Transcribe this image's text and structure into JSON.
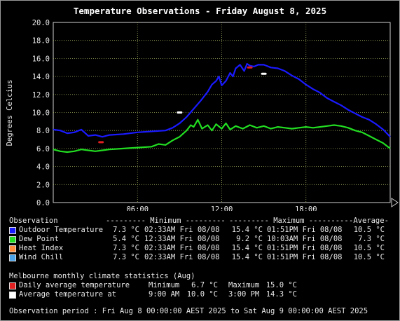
{
  "title": "Temperature Observations - Friday August 8, 2025",
  "chart_data": {
    "type": "line",
    "title": "Temperature Observations - Friday August 8, 2025",
    "ylabel": "Degrees Celcius",
    "xlabel": "",
    "ylim": [
      0,
      20
    ],
    "xlim_hours": [
      0,
      24
    ],
    "y_ticks": [
      "0.0",
      "2.0",
      "4.0",
      "6.0",
      "8.0",
      "10.0",
      "12.0",
      "14.0",
      "16.0",
      "18.0",
      "20.0"
    ],
    "x_ticks": [
      {
        "hour": 6,
        "label": "06:00"
      },
      {
        "hour": 12,
        "label": "12:00"
      },
      {
        "hour": 18,
        "label": "18:00"
      }
    ],
    "grid": true,
    "series": [
      {
        "name": "Outdoor Temperature",
        "color": "#1a1aff",
        "points": [
          [
            0,
            8.1
          ],
          [
            0.5,
            8.0
          ],
          [
            1,
            7.7
          ],
          [
            1.5,
            7.8
          ],
          [
            2,
            8.1
          ],
          [
            2.5,
            7.4
          ],
          [
            3,
            7.5
          ],
          [
            3.5,
            7.3
          ],
          [
            4,
            7.5
          ],
          [
            5,
            7.6
          ],
          [
            6,
            7.8
          ],
          [
            7,
            7.9
          ],
          [
            8,
            8.0
          ],
          [
            8.5,
            8.3
          ],
          [
            9,
            8.8
          ],
          [
            9.5,
            9.5
          ],
          [
            10,
            10.4
          ],
          [
            10.5,
            11.3
          ],
          [
            11,
            12.3
          ],
          [
            11.3,
            13.1
          ],
          [
            11.6,
            13.5
          ],
          [
            11.8,
            14.0
          ],
          [
            12,
            13.0
          ],
          [
            12.3,
            13.5
          ],
          [
            12.6,
            14.4
          ],
          [
            12.8,
            14.0
          ],
          [
            13,
            14.9
          ],
          [
            13.3,
            15.3
          ],
          [
            13.6,
            14.6
          ],
          [
            13.8,
            15.4
          ],
          [
            14,
            15.2
          ],
          [
            14.3,
            15.1
          ],
          [
            14.6,
            15.3
          ],
          [
            15,
            15.3
          ],
          [
            15.5,
            15.0
          ],
          [
            16,
            14.9
          ],
          [
            16.5,
            14.6
          ],
          [
            17,
            14.1
          ],
          [
            17.5,
            13.7
          ],
          [
            18,
            13.1
          ],
          [
            18.5,
            12.6
          ],
          [
            19,
            12.2
          ],
          [
            19.5,
            11.6
          ],
          [
            20,
            11.2
          ],
          [
            20.5,
            10.8
          ],
          [
            21,
            10.3
          ],
          [
            21.5,
            9.9
          ],
          [
            22,
            9.5
          ],
          [
            22.5,
            9.2
          ],
          [
            23,
            8.7
          ],
          [
            23.5,
            8.1
          ],
          [
            24,
            7.3
          ]
        ]
      },
      {
        "name": "Dew Point",
        "color": "#22dd22",
        "points": [
          [
            0,
            5.9
          ],
          [
            0.5,
            5.7
          ],
          [
            1,
            5.6
          ],
          [
            1.5,
            5.7
          ],
          [
            2,
            5.9
          ],
          [
            2.5,
            5.8
          ],
          [
            3,
            5.7
          ],
          [
            3.5,
            5.8
          ],
          [
            4,
            5.9
          ],
          [
            5,
            6.0
          ],
          [
            6,
            6.1
          ],
          [
            7,
            6.2
          ],
          [
            7.5,
            6.5
          ],
          [
            8,
            6.4
          ],
          [
            8.5,
            6.9
          ],
          [
            9,
            7.3
          ],
          [
            9.5,
            8.0
          ],
          [
            9.8,
            8.6
          ],
          [
            10,
            8.4
          ],
          [
            10.3,
            9.2
          ],
          [
            10.6,
            8.2
          ],
          [
            11,
            8.6
          ],
          [
            11.3,
            8.0
          ],
          [
            11.6,
            8.7
          ],
          [
            12,
            8.2
          ],
          [
            12.3,
            8.8
          ],
          [
            12.6,
            8.1
          ],
          [
            13,
            8.5
          ],
          [
            13.5,
            8.2
          ],
          [
            14,
            8.6
          ],
          [
            14.5,
            8.3
          ],
          [
            15,
            8.5
          ],
          [
            15.5,
            8.2
          ],
          [
            16,
            8.4
          ],
          [
            16.5,
            8.3
          ],
          [
            17,
            8.2
          ],
          [
            17.5,
            8.3
          ],
          [
            18,
            8.4
          ],
          [
            18.5,
            8.3
          ],
          [
            19,
            8.4
          ],
          [
            19.5,
            8.5
          ],
          [
            20,
            8.6
          ],
          [
            20.5,
            8.5
          ],
          [
            21,
            8.3
          ],
          [
            21.5,
            8.0
          ],
          [
            22,
            7.8
          ],
          [
            22.5,
            7.4
          ],
          [
            23,
            7.0
          ],
          [
            23.5,
            6.6
          ],
          [
            24,
            6.0
          ]
        ]
      }
    ],
    "markers": [
      {
        "kind": "daily-average-min",
        "hour": 3.4,
        "value": 6.7,
        "color": "#e02020"
      },
      {
        "kind": "daily-average-max",
        "hour": 14.0,
        "value": 15.0,
        "color": "#e02020"
      },
      {
        "kind": "average-temperature-9am",
        "hour": 9.0,
        "value": 10.0,
        "color": "#ffffff"
      },
      {
        "kind": "average-temperature-3pm",
        "hour": 15.0,
        "value": 14.3,
        "color": "#ffffff"
      }
    ]
  },
  "legend": {
    "headers": {
      "observation": "Observation",
      "minimum": "--------- Minimum ---------",
      "maximum": "--------- Maximum ---------",
      "average": "-Average-"
    },
    "rows": [
      {
        "label": "Outdoor Temperature",
        "color": "#1a1aff",
        "min": "7.3 °C",
        "min_time": "02:33AM Fri 08/08",
        "max": "15.4 °C",
        "max_time": "01:51PM Fri 08/08",
        "avg": "10.5 °C"
      },
      {
        "label": "Dew Point",
        "color": "#22dd22",
        "min": "5.4 °C",
        "min_time": "12:33AM Fri 08/08",
        "max": "9.2 °C",
        "max_time": "10:03AM Fri 08/08",
        "avg": "7.3 °C"
      },
      {
        "label": "Heat Index",
        "color": "#ff8c3a",
        "min": "7.3 °C",
        "min_time": "02:33AM Fri 08/08",
        "max": "15.4 °C",
        "max_time": "01:51PM Fri 08/08",
        "avg": "10.5 °C"
      },
      {
        "label": "Wind Chill",
        "color": "#4aa3e8",
        "min": "7.3 °C",
        "min_time": "02:33AM Fri 08/08",
        "max": "15.4 °C",
        "max_time": "01:51PM Fri 08/08",
        "avg": "10.5 °C"
      }
    ]
  },
  "climate": {
    "heading": "Melbourne monthly climate statistics (Aug)",
    "rows": [
      {
        "label": "Daily average temperature",
        "color": "#e02020",
        "c1": "Minimum",
        "v1": "6.7 °C",
        "c2": "Maximum",
        "v2": "15.0 °C"
      },
      {
        "label": "Average temperature at",
        "color": "#ffffff",
        "c1": "9:00 AM",
        "v1": "10.0 °C",
        "c2": "3:00 PM",
        "v2": "14.3 °C"
      }
    ]
  },
  "footer": "Observation period : Fri Aug 8 00:00:00 AEST 2025 to Sat Aug 9 00:00:00 AEST 2025"
}
